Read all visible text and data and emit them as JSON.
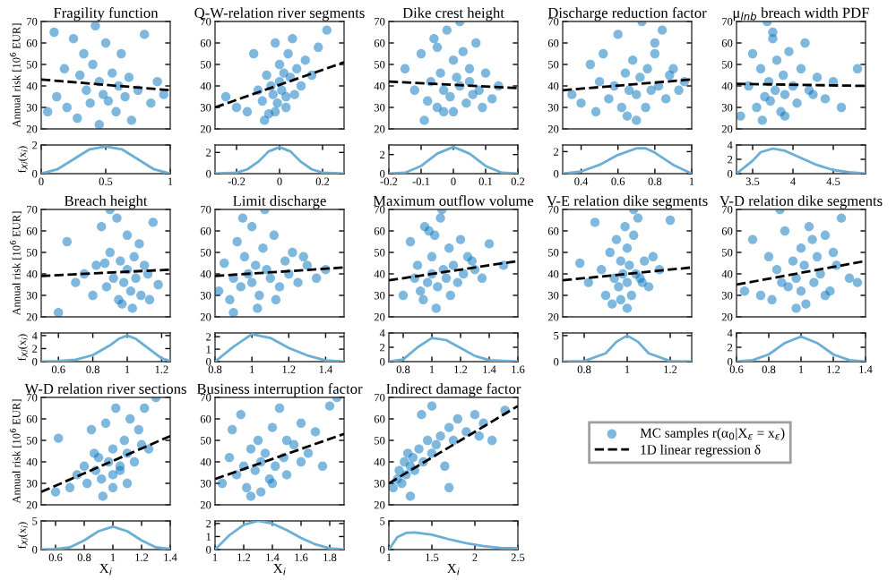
{
  "chart_data": [
    {
      "type": "scatter",
      "title": "Fragility function",
      "ylabel": "Annual risk [10$^{6}$ EUR]",
      "xlim": [
        0,
        1
      ],
      "ylim": [
        20,
        70
      ],
      "yticks": [
        20,
        30,
        40,
        50,
        60,
        70
      ],
      "tick_labels": "y",
      "grid": false,
      "marker": "circle",
      "series": [
        {
          "color": "#0072bd",
          "x": [
            0.05,
            0.1,
            0.12,
            0.18,
            0.2,
            0.25,
            0.28,
            0.3,
            0.33,
            0.35,
            0.38,
            0.4,
            0.42,
            0.45,
            0.48,
            0.5,
            0.52,
            0.55,
            0.58,
            0.6,
            0.62,
            0.65,
            0.68,
            0.7,
            0.75,
            0.8,
            0.85,
            0.9,
            0.95,
            0.45
          ],
          "values": [
            28,
            65,
            35,
            48,
            30,
            62,
            25,
            45,
            55,
            38,
            32,
            50,
            68,
            42,
            36,
            60,
            33,
            46,
            28,
            40,
            55,
            35,
            44,
            24,
            38,
            64,
            32,
            42,
            36,
            22
          ]
        },
        {
          "type": "line",
          "marker": "none",
          "line_style": "dashed",
          "color": "#000000",
          "x": [
            0,
            1
          ],
          "values": [
            43,
            38
          ]
        }
      ]
    },
    {
      "type": "scatter",
      "title": "Q-W-relation river segments",
      "xlim": [
        -0.3,
        0.3
      ],
      "ylim": [
        20,
        70
      ],
      "yticks": [
        20,
        30,
        40,
        50,
        60,
        70
      ],
      "tick_labels": "y",
      "grid": false,
      "marker": "circle",
      "series": [
        {
          "color": "#0072bd",
          "x": [
            -0.25,
            -0.2,
            -0.15,
            -0.12,
            -0.1,
            -0.08,
            -0.06,
            -0.05,
            -0.04,
            -0.03,
            -0.02,
            -0.01,
            0,
            0,
            0.01,
            0.02,
            0.03,
            0.04,
            0.05,
            0.06,
            0.07,
            0.08,
            0.1,
            0.12,
            0.15,
            0.18,
            0.22,
            -0.07,
            0.03,
            -0.02
          ],
          "values": [
            35,
            30,
            28,
            55,
            38,
            33,
            45,
            27,
            40,
            36,
            60,
            32,
            50,
            42,
            38,
            46,
            30,
            55,
            44,
            62,
            36,
            48,
            40,
            52,
            45,
            58,
            66,
            24,
            35,
            28
          ]
        },
        {
          "type": "line",
          "marker": "none",
          "line_style": "dashed",
          "color": "#000000",
          "x": [
            -0.3,
            0.3
          ],
          "values": [
            30,
            51
          ]
        }
      ]
    },
    {
      "type": "scatter",
      "title": "Dike crest height",
      "xlim": [
        -0.2,
        0.2
      ],
      "ylim": [
        20,
        70
      ],
      "yticks": [
        20,
        30,
        40,
        50,
        60,
        70
      ],
      "tick_labels": "y",
      "grid": false,
      "marker": "circle",
      "series": [
        {
          "color": "#0072bd",
          "x": [
            -0.15,
            -0.12,
            -0.1,
            -0.08,
            -0.07,
            -0.06,
            -0.05,
            -0.04,
            -0.03,
            -0.02,
            -0.01,
            0,
            0,
            0.01,
            0.02,
            0.03,
            0.04,
            0.05,
            0.06,
            0.07,
            0.08,
            0.1,
            0.12,
            0.14,
            -0.09,
            -0.03,
            0.02,
            0.05,
            -0.05,
            0.09
          ],
          "values": [
            48,
            38,
            55,
            33,
            42,
            62,
            30,
            46,
            38,
            66,
            35,
            52,
            28,
            44,
            40,
            56,
            32,
            48,
            36,
            60,
            38,
            46,
            34,
            40,
            24,
            28,
            70,
            42,
            58,
            30
          ]
        },
        {
          "type": "line",
          "marker": "none",
          "line_style": "dashed",
          "color": "#000000",
          "x": [
            -0.2,
            0.2
          ],
          "values": [
            42,
            39
          ]
        }
      ]
    },
    {
      "type": "scatter",
      "title": "Discharge reduction factor",
      "xlim": [
        0.3,
        1
      ],
      "ylim": [
        20,
        70
      ],
      "yticks": [
        20,
        30,
        40,
        50,
        60,
        70
      ],
      "tick_labels": "y",
      "grid": false,
      "marker": "circle",
      "series": [
        {
          "color": "#0072bd",
          "x": [
            0.35,
            0.4,
            0.45,
            0.48,
            0.5,
            0.52,
            0.55,
            0.58,
            0.6,
            0.62,
            0.64,
            0.66,
            0.68,
            0.7,
            0.72,
            0.73,
            0.75,
            0.76,
            0.78,
            0.8,
            0.82,
            0.84,
            0.86,
            0.88,
            0.9,
            0.93,
            0.96,
            0.7,
            0.65,
            0.8
          ],
          "values": [
            36,
            32,
            50,
            28,
            42,
            55,
            34,
            40,
            64,
            30,
            46,
            38,
            52,
            36,
            44,
            70,
            30,
            48,
            38,
            55,
            40,
            66,
            34,
            45,
            48,
            38,
            42,
            24,
            26,
            60
          ]
        },
        {
          "type": "line",
          "marker": "none",
          "line_style": "dashed",
          "color": "#000000",
          "x": [
            0.3,
            1
          ],
          "values": [
            38,
            43
          ]
        }
      ]
    },
    {
      "type": "scatter",
      "title": "μ$_{lnb}$ breach width PDF",
      "xlim": [
        3.3,
        4.9
      ],
      "ylim": [
        20,
        70
      ],
      "yticks": [
        20,
        30,
        40,
        50,
        60,
        70
      ],
      "tick_labels": "y",
      "grid": false,
      "marker": "circle",
      "series": [
        {
          "color": "#0072bd",
          "x": [
            3.35,
            3.45,
            3.5,
            3.55,
            3.6,
            3.65,
            3.68,
            3.7,
            3.72,
            3.75,
            3.78,
            3.8,
            3.85,
            3.88,
            3.9,
            3.95,
            4,
            4.05,
            4.1,
            4.15,
            4.2,
            4.3,
            4.4,
            4.5,
            4.6,
            4.8,
            3.62,
            3.75,
            3.9,
            4.25
          ],
          "values": [
            26,
            40,
            55,
            30,
            48,
            35,
            70,
            42,
            33,
            62,
            38,
            52,
            28,
            45,
            36,
            56,
            40,
            32,
            48,
            60,
            38,
            44,
            34,
            42,
            30,
            48,
            24,
            65,
            26,
            36
          ]
        },
        {
          "type": "line",
          "marker": "none",
          "line_style": "dashed",
          "color": "#000000",
          "x": [
            3.3,
            4.9
          ],
          "values": [
            41,
            40
          ]
        }
      ]
    },
    {
      "type": "line",
      "ylabel": "f$_{Xi}$(x$_{i}$)",
      "xlim": [
        0,
        1
      ],
      "xticks": [
        0,
        0.5,
        1
      ],
      "ylim": [
        0,
        2
      ],
      "yticks": [
        0,
        2
      ],
      "grid": false,
      "series": [
        {
          "color": "#6baed6",
          "x": [
            0,
            0.125,
            0.25,
            0.375,
            0.5,
            0.625,
            0.75,
            0.875,
            1
          ],
          "values": [
            0,
            0.3,
            1.0,
            1.7,
            1.9,
            1.7,
            1.0,
            0.3,
            0
          ]
        }
      ]
    },
    {
      "type": "line",
      "xlim": [
        -0.3,
        0.3
      ],
      "xticks": [
        -0.2,
        0,
        0.2
      ],
      "ylim": [
        0,
        2.7
      ],
      "yticks": [
        0,
        2
      ],
      "grid": false,
      "series": [
        {
          "color": "#6baed6",
          "x": [
            -0.3,
            -0.2,
            -0.15,
            -0.1,
            -0.05,
            0,
            0.05,
            0.1,
            0.15,
            0.2,
            0.3
          ],
          "values": [
            0,
            0.1,
            0.4,
            1.1,
            2.1,
            2.5,
            2.1,
            1.1,
            0.4,
            0.1,
            0
          ]
        }
      ]
    },
    {
      "type": "line",
      "xlim": [
        -0.2,
        0.2
      ],
      "xticks": [
        -0.2,
        -0.1,
        0,
        0.1,
        0.2
      ],
      "ylim": [
        0,
        3
      ],
      "yticks": [
        0,
        2
      ],
      "grid": false,
      "series": [
        {
          "color": "#6baed6",
          "x": [
            -0.2,
            -0.15,
            -0.1,
            -0.05,
            0,
            0.05,
            0.1,
            0.15,
            0.2
          ],
          "values": [
            0,
            0.1,
            0.8,
            2.1,
            2.8,
            2.1,
            0.8,
            0.1,
            0
          ]
        }
      ]
    },
    {
      "type": "line",
      "xlim": [
        0.3,
        1
      ],
      "xticks": [
        0.4,
        0.6,
        0.8,
        1
      ],
      "ylim": [
        0,
        2.6
      ],
      "yticks": [
        0,
        2
      ],
      "grid": false,
      "series": [
        {
          "color": "#6baed6",
          "x": [
            0.3,
            0.4,
            0.5,
            0.6,
            0.7,
            0.75,
            0.8,
            0.9,
            1
          ],
          "values": [
            0,
            0.2,
            0.8,
            1.7,
            2.3,
            2.3,
            1.9,
            0.8,
            0
          ]
        }
      ]
    },
    {
      "type": "line",
      "xlim": [
        3.3,
        4.9
      ],
      "xticks": [
        3.5,
        4,
        4.5
      ],
      "ylim": [
        0,
        4
      ],
      "yticks": [
        0,
        2,
        4
      ],
      "grid": false,
      "series": [
        {
          "color": "#6baed6",
          "x": [
            3.3,
            3.5,
            3.6,
            3.75,
            3.9,
            4.1,
            4.3,
            4.5,
            4.7,
            4.9
          ],
          "values": [
            0,
            1.8,
            3.0,
            3.5,
            3.2,
            2.2,
            1.2,
            0.5,
            0.2,
            0
          ]
        }
      ]
    },
    {
      "type": "scatter",
      "title": "Breach height",
      "ylabel": "Annual risk [10$^{6}$ EUR]",
      "xlim": [
        0.5,
        1.25
      ],
      "ylim": [
        20,
        70
      ],
      "yticks": [
        20,
        30,
        40,
        50,
        60,
        70
      ],
      "tick_labels": "y",
      "grid": false,
      "marker": "circle",
      "series": [
        {
          "color": "#0072bd",
          "x": [
            0.6,
            0.65,
            0.7,
            0.75,
            0.8,
            0.82,
            0.85,
            0.88,
            0.9,
            0.92,
            0.94,
            0.95,
            0.96,
            0.98,
            1,
            1,
            1.02,
            1.04,
            1.05,
            1.07,
            1.08,
            1.1,
            1.12,
            1.15,
            1.18,
            0.9,
            0.97,
            1.03,
            0.87,
            1.13
          ],
          "values": [
            22,
            55,
            36,
            40,
            30,
            44,
            62,
            34,
            50,
            38,
            66,
            28,
            46,
            36,
            58,
            42,
            32,
            48,
            38,
            54,
            30,
            44,
            40,
            64,
            35,
            70,
            26,
            24,
            45,
            28
          ]
        },
        {
          "type": "line",
          "marker": "none",
          "line_style": "dashed",
          "color": "#000000",
          "x": [
            0.5,
            1.25
          ],
          "values": [
            39,
            42
          ]
        }
      ]
    },
    {
      "type": "scatter",
      "title": "Limit discharge",
      "xlim": [
        0.8,
        1.5
      ],
      "ylim": [
        20,
        70
      ],
      "yticks": [
        20,
        30,
        40,
        50,
        60,
        70
      ],
      "tick_labels": "y",
      "grid": false,
      "marker": "circle",
      "series": [
        {
          "color": "#0072bd",
          "x": [
            0.82,
            0.85,
            0.88,
            0.9,
            0.92,
            0.94,
            0.96,
            0.98,
            1,
            1,
            1.02,
            1.04,
            1.06,
            1.08,
            1.1,
            1.12,
            1.15,
            1.18,
            1.2,
            1.22,
            1.25,
            1.3,
            1.35,
            1.4,
            0.95,
            1.03,
            1.07,
            0.9,
            1.13,
            1.28
          ],
          "values": [
            32,
            45,
            28,
            38,
            55,
            34,
            48,
            40,
            62,
            36,
            44,
            30,
            52,
            42,
            38,
            58,
            34,
            46,
            40,
            50,
            36,
            44,
            38,
            42,
            66,
            24,
            70,
            22,
            28,
            48
          ]
        },
        {
          "type": "line",
          "marker": "none",
          "line_style": "dashed",
          "color": "#000000",
          "x": [
            0.8,
            1.5
          ],
          "values": [
            39,
            43
          ]
        }
      ]
    },
    {
      "type": "scatter",
      "title": "Maximum outflow volume",
      "xlim": [
        0.7,
        1.6
      ],
      "ylim": [
        20,
        70
      ],
      "yticks": [
        20,
        30,
        40,
        50,
        60,
        70
      ],
      "tick_labels": "y",
      "grid": false,
      "marker": "circle",
      "series": [
        {
          "color": "#0072bd",
          "x": [
            0.8,
            0.85,
            0.88,
            0.9,
            0.92,
            0.95,
            0.97,
            1,
            1,
            1.02,
            1.04,
            1.06,
            1.08,
            1.1,
            1.12,
            1.15,
            1.18,
            1.2,
            1.22,
            1.25,
            1.3,
            1.35,
            1.4,
            1.5,
            0.94,
            1.03,
            1.07,
            1.13,
            0.98,
            1.28
          ],
          "values": [
            30,
            55,
            38,
            44,
            32,
            62,
            36,
            48,
            40,
            58,
            34,
            66,
            42,
            38,
            52,
            44,
            36,
            56,
            40,
            48,
            42,
            38,
            54,
            44,
            28,
            24,
            70,
            30,
            60,
            46
          ]
        },
        {
          "type": "line",
          "marker": "none",
          "line_style": "dashed",
          "color": "#000000",
          "x": [
            0.7,
            1.6
          ],
          "values": [
            37,
            46
          ]
        }
      ]
    },
    {
      "type": "scatter",
      "title": "V-E relation dike segments",
      "xlim": [
        0.7,
        1.3
      ],
      "ylim": [
        20,
        70
      ],
      "yticks": [
        20,
        30,
        40,
        50,
        60,
        70
      ],
      "tick_labels": "y",
      "grid": false,
      "marker": "circle",
      "series": [
        {
          "color": "#0072bd",
          "x": [
            0.78,
            0.82,
            0.85,
            0.88,
            0.9,
            0.92,
            0.94,
            0.95,
            0.96,
            0.97,
            0.98,
            0.99,
            1,
            1,
            1.01,
            1.02,
            1.03,
            1.04,
            1.05,
            1.06,
            1.08,
            1.1,
            1.12,
            1.15,
            1.2,
            0.93,
            1.0,
            1.03,
            0.97,
            1.07
          ],
          "values": [
            45,
            36,
            64,
            42,
            30,
            50,
            38,
            56,
            34,
            46,
            40,
            62,
            36,
            52,
            44,
            30,
            58,
            40,
            66,
            38,
            46,
            34,
            48,
            42,
            65,
            26,
            24,
            70,
            28,
            36
          ]
        },
        {
          "type": "line",
          "marker": "none",
          "line_style": "dashed",
          "color": "#000000",
          "x": [
            0.7,
            1.3
          ],
          "values": [
            37,
            43
          ]
        }
      ]
    },
    {
      "type": "scatter",
      "title": "V-D relation dike segments",
      "xlim": [
        0.6,
        1.4
      ],
      "ylim": [
        20,
        70
      ],
      "yticks": [
        20,
        30,
        40,
        50,
        60,
        70
      ],
      "tick_labels": "y",
      "grid": false,
      "marker": "circle",
      "series": [
        {
          "color": "#0072bd",
          "x": [
            0.65,
            0.7,
            0.75,
            0.8,
            0.82,
            0.85,
            0.88,
            0.9,
            0.92,
            0.95,
            0.97,
            1,
            1,
            1.02,
            1.05,
            1.08,
            1.1,
            1.12,
            1.15,
            1.18,
            1.2,
            1.22,
            1.25,
            1.3,
            1.35,
            0.87,
            0.97,
            1.03,
            1.07,
            1.15
          ],
          "values": [
            32,
            56,
            30,
            48,
            28,
            42,
            36,
            60,
            34,
            46,
            38,
            52,
            32,
            44,
            62,
            36,
            48,
            40,
            58,
            32,
            50,
            44,
            66,
            38,
            36,
            70,
            24,
            26,
            56,
            30
          ]
        },
        {
          "type": "line",
          "marker": "none",
          "line_style": "dashed",
          "color": "#000000",
          "x": [
            0.6,
            1.4
          ],
          "values": [
            35,
            46
          ]
        }
      ]
    },
    {
      "type": "line",
      "ylabel": "f$_{Xi}$(x$_{i}$)",
      "xlim": [
        0.5,
        1.25
      ],
      "xticks": [
        0.6,
        0.8,
        1,
        1.2
      ],
      "ylim": [
        0,
        4.4
      ],
      "yticks": [
        0,
        2,
        4
      ],
      "grid": false,
      "series": [
        {
          "color": "#6baed6",
          "x": [
            0.5,
            0.6,
            0.7,
            0.8,
            0.9,
            0.95,
            1,
            1.05,
            1.1,
            1.2,
            1.25
          ],
          "values": [
            0,
            0.1,
            0.3,
            1.0,
            2.5,
            3.5,
            4.0,
            3.5,
            2.5,
            0.5,
            0.1
          ]
        }
      ]
    },
    {
      "type": "line",
      "xlim": [
        0.8,
        1.5
      ],
      "xticks": [
        0.8,
        1,
        1.2,
        1.4
      ],
      "ylim": [
        0,
        2.3
      ],
      "yticks": [
        0,
        1,
        2
      ],
      "grid": false,
      "series": [
        {
          "color": "#6baed6",
          "x": [
            0.8,
            0.9,
            1,
            1.1,
            1.2,
            1.3,
            1.4,
            1.5
          ],
          "values": [
            0,
            1.2,
            2.2,
            1.9,
            1.1,
            0.5,
            0.1,
            0
          ]
        }
      ]
    },
    {
      "type": "line",
      "xlim": [
        0.7,
        1.6
      ],
      "xticks": [
        0.8,
        1,
        1.2,
        1.4,
        1.6
      ],
      "ylim": [
        0,
        4
      ],
      "yticks": [
        0,
        2,
        4
      ],
      "grid": false,
      "series": [
        {
          "color": "#6baed6",
          "x": [
            0.7,
            0.8,
            0.9,
            1,
            1.1,
            1.2,
            1.3,
            1.4,
            1.6
          ],
          "values": [
            0,
            0.3,
            2.0,
            3.3,
            3.0,
            1.9,
            0.8,
            0.2,
            0
          ]
        }
      ]
    },
    {
      "type": "line",
      "xlim": [
        0.7,
        1.3
      ],
      "xticks": [
        0.8,
        1,
        1.2
      ],
      "ylim": [
        0,
        5.5
      ],
      "yticks": [
        0,
        5
      ],
      "grid": false,
      "series": [
        {
          "color": "#6baed6",
          "x": [
            0.7,
            0.8,
            0.9,
            0.95,
            1,
            1.05,
            1.1,
            1.2,
            1.3
          ],
          "values": [
            0,
            0.1,
            1.6,
            3.8,
            5.0,
            3.8,
            1.6,
            0.1,
            0
          ]
        }
      ]
    },
    {
      "type": "line",
      "xlim": [
        0.6,
        1.4
      ],
      "xticks": [
        0.6,
        0.8,
        1,
        1.2,
        1.4
      ],
      "ylim": [
        0,
        4
      ],
      "yticks": [
        0,
        2,
        4
      ],
      "grid": false,
      "series": [
        {
          "color": "#6baed6",
          "x": [
            0.6,
            0.7,
            0.8,
            0.9,
            1,
            1.1,
            1.2,
            1.3,
            1.4
          ],
          "values": [
            0,
            0.2,
            1.0,
            2.6,
            3.5,
            2.6,
            1.0,
            0.2,
            0
          ]
        }
      ]
    },
    {
      "type": "scatter",
      "title": "W-D relation river sections",
      "ylabel": "Annual risk [10$^{6}$ EUR]",
      "xlim": [
        0.5,
        1.4
      ],
      "ylim": [
        20,
        70
      ],
      "yticks": [
        20,
        30,
        40,
        50,
        60,
        70
      ],
      "tick_labels": "y",
      "grid": false,
      "marker": "circle",
      "series": [
        {
          "color": "#0072bd",
          "x": [
            0.6,
            0.62,
            0.7,
            0.75,
            0.8,
            0.82,
            0.85,
            0.88,
            0.9,
            0.92,
            0.95,
            0.97,
            1,
            1,
            1.02,
            1.05,
            1.08,
            1.1,
            1.12,
            1.15,
            1.18,
            1.2,
            1.22,
            1.25,
            1.3,
            0.93,
            1,
            1.05,
            1.1,
            0.87
          ],
          "values": [
            26,
            51,
            28,
            34,
            38,
            30,
            55,
            36,
            42,
            32,
            58,
            40,
            46,
            34,
            65,
            38,
            50,
            44,
            60,
            40,
            55,
            48,
            65,
            46,
            70,
            24,
            28,
            36,
            30,
            44
          ]
        },
        {
          "type": "line",
          "marker": "none",
          "line_style": "dashed",
          "color": "#000000",
          "x": [
            0.5,
            1.4
          ],
          "values": [
            26,
            52
          ]
        }
      ]
    },
    {
      "type": "scatter",
      "title": "Business interruption factor",
      "xlim": [
        1,
        1.9
      ],
      "ylim": [
        20,
        70
      ],
      "yticks": [
        20,
        30,
        40,
        50,
        60,
        70
      ],
      "tick_labels": "y",
      "grid": false,
      "marker": "circle",
      "series": [
        {
          "color": "#0072bd",
          "x": [
            1.05,
            1.1,
            1.12,
            1.15,
            1.18,
            1.2,
            1.22,
            1.25,
            1.28,
            1.3,
            1.32,
            1.35,
            1.38,
            1.4,
            1.42,
            1.45,
            1.48,
            1.5,
            1.55,
            1.6,
            1.65,
            1.7,
            1.75,
            1.8,
            1.85,
            1.25,
            1.32,
            1.4,
            1.5,
            1.6
          ],
          "values": [
            30,
            42,
            55,
            34,
            62,
            38,
            28,
            46,
            36,
            50,
            40,
            44,
            32,
            56,
            38,
            65,
            42,
            50,
            48,
            58,
            44,
            54,
            38,
            66,
            70,
            24,
            26,
            30,
            34,
            40
          ]
        },
        {
          "type": "line",
          "marker": "none",
          "line_style": "dashed",
          "color": "#000000",
          "x": [
            1,
            1.9
          ],
          "values": [
            32,
            53
          ]
        }
      ]
    },
    {
      "type": "scatter",
      "title": "Indirect damage factor",
      "xlim": [
        1,
        2.5
      ],
      "ylim": [
        20,
        70
      ],
      "yticks": [
        20,
        30,
        40,
        50,
        60,
        70
      ],
      "tick_labels": "y",
      "grid": false,
      "marker": "circle",
      "legend": "right",
      "series": [
        {
          "name": "MC samples r(α$_{0}$|X$_{ε}$ = x$_{ε}$)",
          "color": "#0072bd",
          "x": [
            1.05,
            1.1,
            1.12,
            1.15,
            1.18,
            1.2,
            1.22,
            1.25,
            1.28,
            1.3,
            1.35,
            1.4,
            1.45,
            1.5,
            1.55,
            1.6,
            1.65,
            1.7,
            1.75,
            1.8,
            1.9,
            2,
            2.1,
            2.2,
            2.35,
            1.25,
            1.38,
            1.5,
            1.7,
            2.05
          ],
          "values": [
            28,
            32,
            36,
            30,
            40,
            34,
            44,
            38,
            42,
            36,
            46,
            40,
            50,
            44,
            48,
            52,
            38,
            56,
            50,
            60,
            54,
            62,
            58,
            50,
            64,
            24,
            62,
            66,
            28,
            52
          ]
        },
        {
          "name": "1D linear regression δ",
          "type": "line",
          "marker": "none",
          "line_style": "dashed",
          "color": "#000000",
          "x": [
            1,
            2.5
          ],
          "values": [
            30,
            66
          ]
        }
      ]
    },
    {
      "type": "line",
      "ylabel": "f$_{Xi}$(x$_{i}$)",
      "xlabel": "X$_{i}$",
      "xlim": [
        0.5,
        1.4
      ],
      "xticks": [
        0.6,
        0.8,
        1,
        1.2,
        1.4
      ],
      "ylim": [
        0,
        5
      ],
      "yticks": [
        0,
        5
      ],
      "grid": false,
      "series": [
        {
          "color": "#6baed6",
          "x": [
            0.5,
            0.6,
            0.7,
            0.8,
            0.9,
            1,
            1.1,
            1.2,
            1.3,
            1.4
          ],
          "values": [
            0,
            0.1,
            0.4,
            1.6,
            3.2,
            4.0,
            3.2,
            1.6,
            0.4,
            0.1
          ]
        }
      ]
    },
    {
      "type": "line",
      "xlabel": "X$_{i}$",
      "xlim": [
        1,
        1.9
      ],
      "xticks": [
        1,
        1.2,
        1.4,
        1.6,
        1.8
      ],
      "ylim": [
        0,
        2.2
      ],
      "yticks": [
        0,
        1,
        2
      ],
      "grid": false,
      "series": [
        {
          "color": "#6baed6",
          "x": [
            1,
            1.1,
            1.2,
            1.3,
            1.4,
            1.5,
            1.6,
            1.7,
            1.8,
            1.9
          ],
          "values": [
            0,
            1.1,
            1.9,
            2.2,
            2.0,
            1.5,
            0.9,
            0.4,
            0.1,
            0
          ]
        }
      ]
    },
    {
      "type": "line",
      "xlabel": "X$_{i}$",
      "xlim": [
        1,
        2.5
      ],
      "xticks": [
        1,
        1.5,
        2,
        2.5
      ],
      "ylim": [
        0,
        5
      ],
      "yticks": [
        0,
        5
      ],
      "grid": false,
      "series": [
        {
          "color": "#6baed6",
          "x": [
            1,
            1.1,
            1.2,
            1.3,
            1.5,
            1.7,
            1.9,
            2.1,
            2.3,
            2.5
          ],
          "values": [
            0,
            2.2,
            2.9,
            3.0,
            2.6,
            1.8,
            1.1,
            0.6,
            0.3,
            0.2
          ]
        }
      ]
    }
  ]
}
